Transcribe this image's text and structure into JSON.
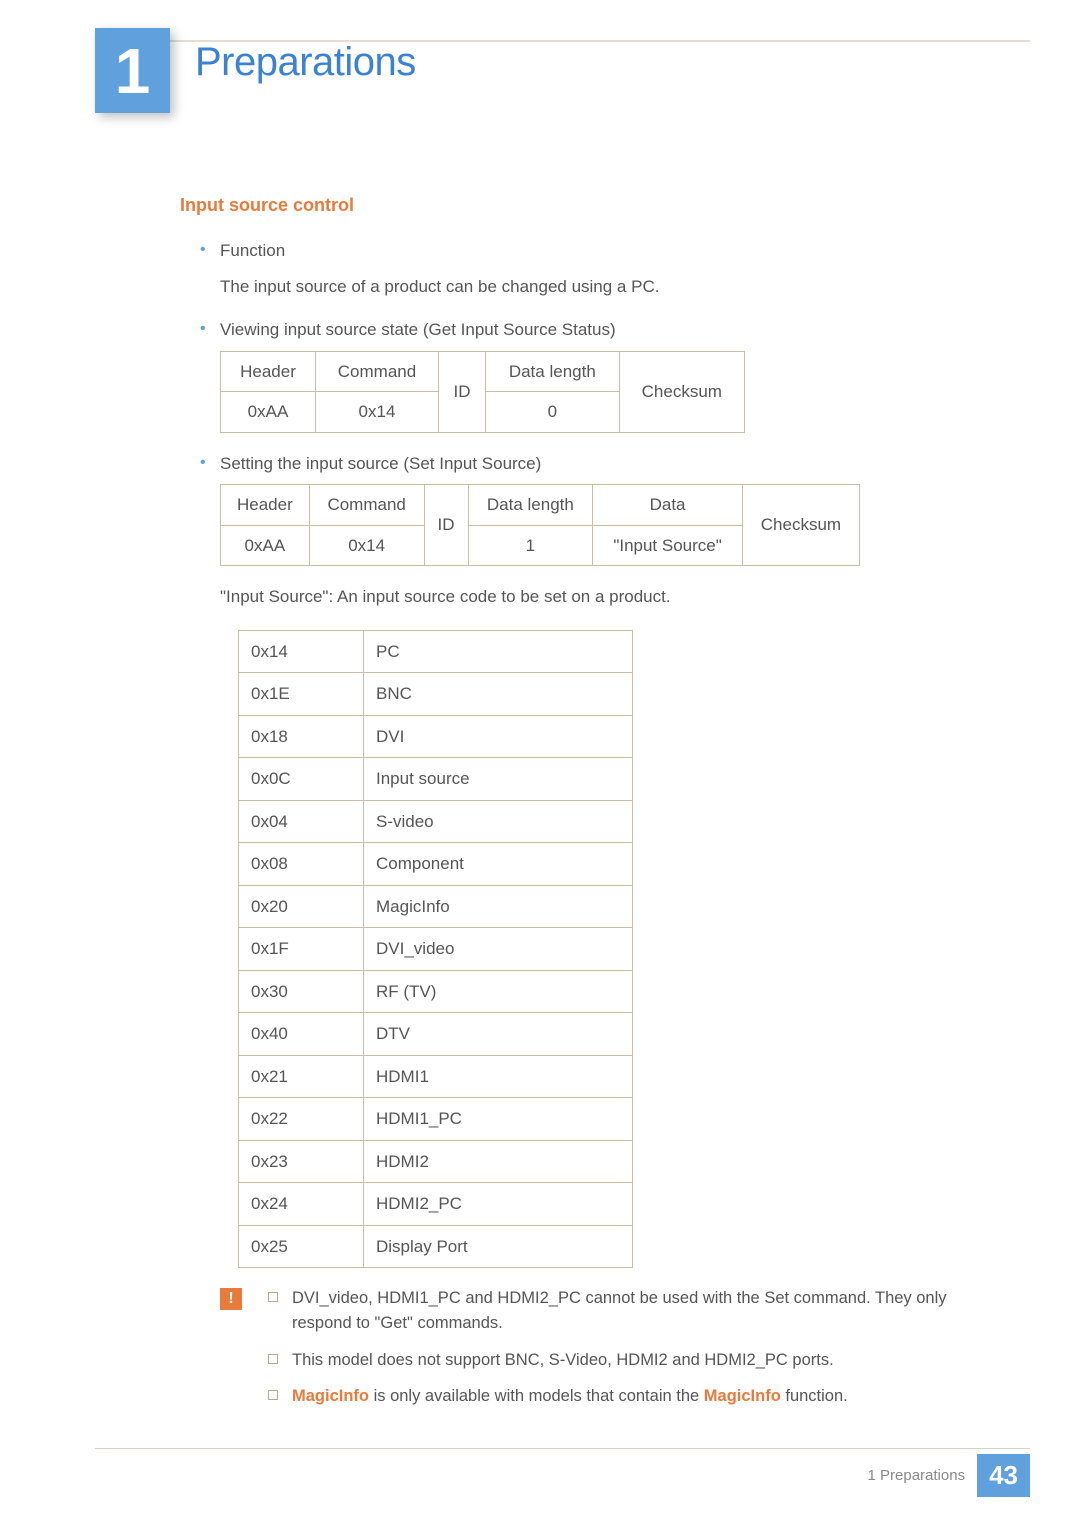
{
  "chapter": {
    "number": "1",
    "title": "Preparations"
  },
  "section": {
    "heading": "Input source control"
  },
  "bullets": {
    "b1_title": "Function",
    "b1_desc": "The input source of a product can be changed using a PC.",
    "b2_title": "Viewing input source state (Get Input Source Status)",
    "b3_title": "Setting the input source (Set Input Source)"
  },
  "table1": {
    "h_header": "Header",
    "h_command": "Command",
    "h_id": "ID",
    "h_datalen": "Data length",
    "h_checksum": "Checksum",
    "v_header": "0xAA",
    "v_command": "0x14",
    "v_datalen": "0"
  },
  "table2": {
    "h_header": "Header",
    "h_command": "Command",
    "h_id": "ID",
    "h_datalen": "Data length",
    "h_data": "Data",
    "h_checksum": "Checksum",
    "v_header": "0xAA",
    "v_command": "0x14",
    "v_datalen": "1",
    "v_data": "\"Input Source\""
  },
  "desc": "\"Input Source\": An input source code to be set on a product.",
  "codes": [
    {
      "code": "0x14",
      "name": "PC"
    },
    {
      "code": "0x1E",
      "name": "BNC"
    },
    {
      "code": "0x18",
      "name": "DVI"
    },
    {
      "code": "0x0C",
      "name": "Input source"
    },
    {
      "code": "0x04",
      "name": "S-video"
    },
    {
      "code": "0x08",
      "name": "Component"
    },
    {
      "code": "0x20",
      "name": "MagicInfo"
    },
    {
      "code": "0x1F",
      "name": "DVI_video"
    },
    {
      "code": "0x30",
      "name": "RF (TV)"
    },
    {
      "code": "0x40",
      "name": "DTV"
    },
    {
      "code": "0x21",
      "name": "HDMI1"
    },
    {
      "code": "0x22",
      "name": "HDMI1_PC"
    },
    {
      "code": "0x23",
      "name": "HDMI2"
    },
    {
      "code": "0x24",
      "name": "HDMI2_PC"
    },
    {
      "code": "0x25",
      "name": "Display Port"
    }
  ],
  "notes": {
    "n1": "DVI_video, HDMI1_PC and HDMI2_PC cannot be used with the Set command. They only respond to \"Get\" commands.",
    "n2": "This model does not support BNC, S-Video, HDMI2 and HDMI2_PC ports.",
    "n3_a": "MagicInfo",
    "n3_b": " is only available with models that contain the ",
    "n3_c": "MagicInfo",
    "n3_d": " function."
  },
  "footer": {
    "label": "1 Preparations",
    "page": "43"
  },
  "icon": {
    "warn": "!"
  }
}
